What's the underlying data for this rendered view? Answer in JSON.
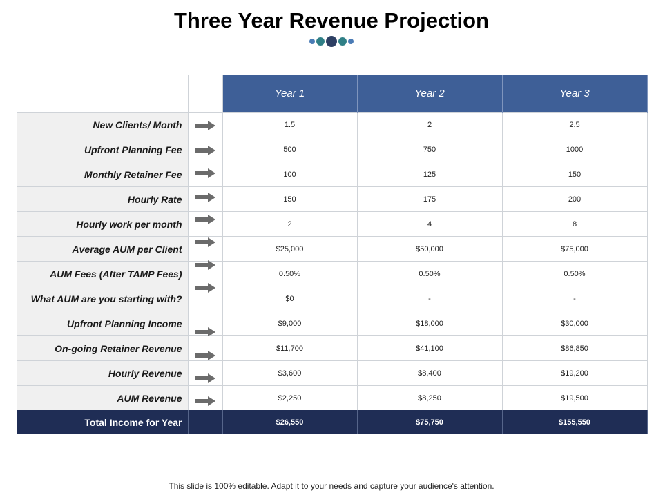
{
  "title": "Three Year Revenue Projection",
  "columns": [
    "Year 1",
    "Year 2",
    "Year 3"
  ],
  "rows": [
    {
      "label": "New Clients/ Month",
      "values": [
        "1.5",
        "2",
        "2.5"
      ]
    },
    {
      "label": "Upfront Planning Fee",
      "values": [
        "500",
        "750",
        "1000"
      ]
    },
    {
      "label": "Monthly Retainer Fee",
      "values": [
        "100",
        "125",
        "150"
      ]
    },
    {
      "label": "Hourly Rate",
      "values": [
        "150",
        "175",
        "200"
      ]
    },
    {
      "label": "Hourly work per month",
      "values": [
        "2",
        "4",
        "8"
      ]
    },
    {
      "label": "Average AUM per Client",
      "values": [
        "$25,000",
        "$50,000",
        "$75,000"
      ]
    },
    {
      "label": "AUM Fees (After TAMP Fees)",
      "values": [
        "0.50%",
        "0.50%",
        "0.50%"
      ]
    },
    {
      "label": "What AUM are you starting with?",
      "values": [
        "$0",
        "-",
        "-"
      ]
    },
    {
      "label": "Upfront Planning Income",
      "values": [
        "$9,000",
        "$18,000",
        "$30,000"
      ]
    },
    {
      "label": "On-going Retainer Revenue",
      "values": [
        "$11,700",
        "$41,100",
        "$86,850"
      ]
    },
    {
      "label": "Hourly Revenue",
      "values": [
        "$3,600",
        "$8,400",
        "$19,200"
      ]
    },
    {
      "label": "AUM Revenue",
      "values": [
        "$2,250",
        "$8,250",
        "$19,500"
      ]
    }
  ],
  "total": {
    "label": "Total Income for Year",
    "values": [
      "$26,550",
      "$75,750",
      "$155,550"
    ]
  },
  "footer": "This slide is 100% editable. Adapt it to your needs and capture your audience's attention.",
  "colors": {
    "header_blue": "#3e5f97",
    "total_navy": "#1f2d55",
    "label_bg": "#f0f0f0"
  },
  "icons": {
    "row_marker": "arrow-right-icon"
  }
}
